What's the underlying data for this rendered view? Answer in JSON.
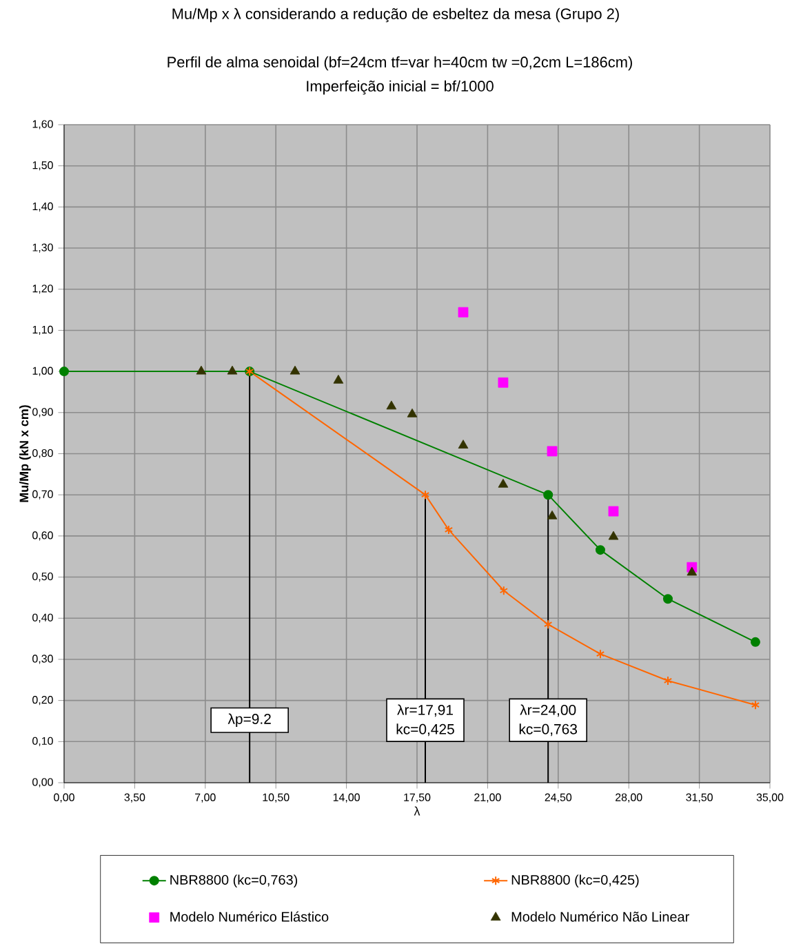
{
  "chart_data": {
    "type": "line",
    "title": "Mu/Mp x λ considerando a redução de esbeltez da mesa (Grupo 2)",
    "subtitle": "Perfil de alma senoidal   (bf=24cm   tf=var    h=40cm   tw =0,2cm  L=186cm)",
    "xlabel": "λ",
    "ylabel": "Mu/Mp (kN x cm)",
    "annotations": [
      "Imperfeição inicial = bf/1000"
    ],
    "ref_lines": [
      {
        "axis": "x",
        "value": 9.2,
        "label": "λp=9.2",
        "color": "#000000"
      },
      {
        "axis": "x",
        "value": 17.91,
        "label": "λr=17,91 kc=0,425",
        "color": "#000000"
      },
      {
        "axis": "x",
        "value": 24.0,
        "label": "λr=24,00 kc=0,763",
        "color": "#000000"
      }
    ],
    "xlim": [
      0,
      35
    ],
    "ylim": [
      0,
      1.6
    ],
    "xticks": [
      {
        "value": 0,
        "label": "0,00"
      },
      {
        "value": 3.5,
        "label": "3,50"
      },
      {
        "value": 7,
        "label": "7,00"
      },
      {
        "value": 10.5,
        "label": "10,50"
      },
      {
        "value": 14,
        "label": "14,00"
      },
      {
        "value": 17.5,
        "label": "17,50"
      },
      {
        "value": 21,
        "label": "21,00"
      },
      {
        "value": 24.5,
        "label": "24,50"
      },
      {
        "value": 28,
        "label": "28,00"
      },
      {
        "value": 31.5,
        "label": "31,50"
      },
      {
        "value": 35,
        "label": "35,00"
      }
    ],
    "yticks": [
      {
        "value": 0,
        "label": "0,00"
      },
      {
        "value": 0.1,
        "label": "0,10"
      },
      {
        "value": 0.2,
        "label": "0,20"
      },
      {
        "value": 0.3,
        "label": "0,30"
      },
      {
        "value": 0.4,
        "label": "0,40"
      },
      {
        "value": 0.5,
        "label": "0,50"
      },
      {
        "value": 0.6,
        "label": "0,60"
      },
      {
        "value": 0.7,
        "label": "0,70"
      },
      {
        "value": 0.8,
        "label": "0,80"
      },
      {
        "value": 0.9,
        "label": "0,90"
      },
      {
        "value": 1.0,
        "label": "1,00"
      },
      {
        "value": 1.1,
        "label": "1,10"
      },
      {
        "value": 1.2,
        "label": "1,20"
      },
      {
        "value": 1.3,
        "label": "1,30"
      },
      {
        "value": 1.4,
        "label": "1,40"
      },
      {
        "value": 1.5,
        "label": "1,50"
      },
      {
        "value": 1.6,
        "label": "1,60"
      }
    ],
    "grid": true,
    "legend": "bottom",
    "series": [
      {
        "name": "NBR8800 (kc=0,763)",
        "color": "#008000",
        "marker": "circle",
        "line_style": "solid",
        "x": [
          0,
          9.2,
          24.0,
          26.59,
          29.94,
          34.28
        ],
        "values": [
          1.0,
          1.0,
          0.7,
          0.566,
          0.447,
          0.342
        ]
      },
      {
        "name": "NBR8800 (kc=0,425)",
        "color": "#ff6600",
        "marker": "cross",
        "line_style": "solid",
        "x": [
          9.2,
          17.91,
          19.07,
          21.8,
          24.0,
          26.59,
          29.94,
          34.28
        ],
        "values": [
          1.0,
          0.7,
          0.615,
          0.467,
          0.385,
          0.313,
          0.248,
          0.189
        ]
      },
      {
        "name": "Modelo Numérico Elástico",
        "type": "scatter",
        "color": "#ff00ff",
        "marker": "square",
        "x": [
          19.79,
          21.77,
          24.2,
          27.24,
          31.13
        ],
        "values": [
          1.144,
          0.973,
          0.806,
          0.66,
          0.524
        ]
      },
      {
        "name": "Modelo Numérico Não Linear",
        "type": "scatter",
        "color": "#333300",
        "marker": "triangle",
        "x": [
          6.8,
          8.34,
          11.45,
          13.6,
          16.23,
          17.26,
          19.79,
          21.77,
          24.2,
          27.24,
          31.13
        ],
        "values": [
          1.0,
          1.0,
          1.0,
          0.978,
          0.915,
          0.896,
          0.82,
          0.725,
          0.648,
          0.598,
          0.511
        ]
      }
    ]
  }
}
